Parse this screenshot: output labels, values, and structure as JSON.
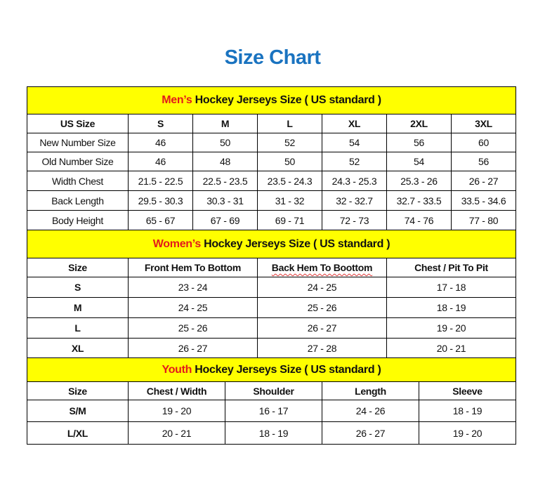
{
  "title": "Size Chart",
  "colors": {
    "title": "#1a73c0",
    "header_bg": "#ffff00",
    "accent": "#e31b1b"
  },
  "sections": [
    {
      "id": "men",
      "header_accent": "Men’s",
      "header_rest": " Hockey Jerseys Size ( US standard )",
      "columns": [
        "US Size",
        "S",
        "M",
        "L",
        "XL",
        "2XL",
        "3XL"
      ],
      "rows": [
        [
          "New Number Size",
          "46",
          "50",
          "52",
          "54",
          "56",
          "60"
        ],
        [
          "Old Number Size",
          "46",
          "48",
          "50",
          "52",
          "54",
          "56"
        ],
        [
          "Width Chest",
          "21.5 - 22.5",
          "22.5 - 23.5",
          "23.5 - 24.3",
          "24.3 - 25.3",
          "25.3 - 26",
          "26 - 27"
        ],
        [
          "Back Length",
          "29.5 - 30.3",
          "30.3 - 31",
          "31 - 32",
          "32 - 32.7",
          "32.7 - 33.5",
          "33.5 - 34.6"
        ],
        [
          "Body Height",
          "65 - 67",
          "67 - 69",
          "69 - 71",
          "72 - 73",
          "74 - 76",
          "77 - 80"
        ]
      ]
    },
    {
      "id": "women",
      "header_accent": "Women’s",
      "header_rest": " Hockey Jerseys Size ( US standard )",
      "columns": [
        "Size",
        "Front Hem To Bottom",
        "Back Hem To Boottom",
        "Chest / Pit To Pit"
      ],
      "rows": [
        [
          "S",
          "23 - 24",
          "24 - 25",
          "17 - 18"
        ],
        [
          "M",
          "24 - 25",
          "25 - 26",
          "18 - 19"
        ],
        [
          "L",
          "25 - 26",
          "26 - 27",
          "19 - 20"
        ],
        [
          "XL",
          "26 - 27",
          "27 - 28",
          "20 - 21"
        ]
      ]
    },
    {
      "id": "youth",
      "header_accent": "Youth",
      "header_rest": " Hockey Jerseys Size ( US standard )",
      "columns": [
        "Size",
        "Chest / Width",
        "Shoulder",
        "Length",
        "Sleeve"
      ],
      "rows": [
        [
          "S/M",
          "19 - 20",
          "16 - 17",
          "24 - 26",
          "18 - 19"
        ],
        [
          "L/XL",
          "20 - 21",
          "18 - 19",
          "26 - 27",
          "19 - 20"
        ]
      ]
    }
  ]
}
